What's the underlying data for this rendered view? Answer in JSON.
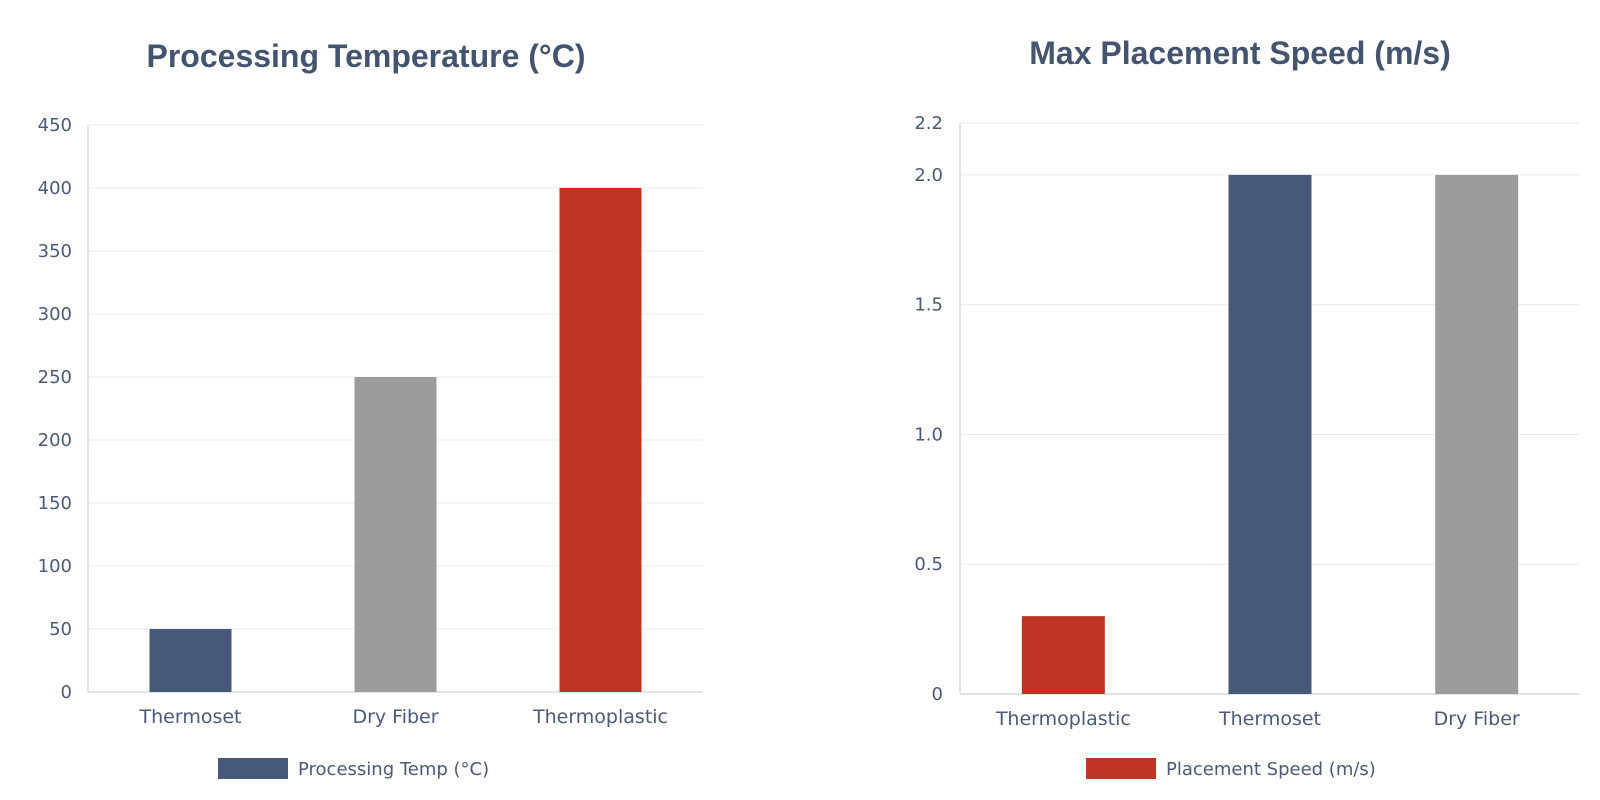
{
  "colors": {
    "navy": "#475879",
    "gray": "#9c9c9a",
    "red": "#be3324",
    "text": "#44546f",
    "grid": "#e9ebef"
  },
  "chart_data": [
    {
      "type": "bar",
      "title": "Processing Temperature (°C)",
      "categories": [
        "Thermoset",
        "Dry Fiber",
        "Thermoplastic"
      ],
      "series": [
        {
          "name": "Processing Temp (°C)",
          "values": [
            50,
            250,
            400
          ]
        }
      ],
      "bar_colors": [
        "#475879",
        "#9c9c9a",
        "#be3324"
      ],
      "legend_color": "#475879",
      "ylim": [
        0,
        450
      ],
      "yticks": [
        0,
        50,
        100,
        150,
        200,
        250,
        300,
        350,
        400,
        450
      ],
      "ytick_labels": [
        "0",
        "50",
        "100",
        "150",
        "200",
        "250",
        "300",
        "350",
        "400",
        "450"
      ],
      "xlabel": "",
      "ylabel": "",
      "grid": true,
      "legend_position": "bottom"
    },
    {
      "type": "bar",
      "title": "Max Placement Speed (m/s)",
      "categories": [
        "Thermoplastic",
        "Thermoset",
        "Dry Fiber"
      ],
      "series": [
        {
          "name": "Placement Speed (m/s)",
          "values": [
            0.3,
            2.0,
            2.0
          ]
        }
      ],
      "bar_colors": [
        "#be3324",
        "#475879",
        "#9c9c9a"
      ],
      "legend_color": "#be3324",
      "ylim": [
        0,
        2.2
      ],
      "yticks": [
        0,
        0.5,
        1.0,
        1.5,
        2.0,
        2.2
      ],
      "ytick_labels": [
        "0",
        "0.5",
        "1.0",
        "1.5",
        "2.0",
        "2.2"
      ],
      "xlabel": "",
      "ylabel": "",
      "grid": true,
      "legend_position": "bottom"
    }
  ]
}
